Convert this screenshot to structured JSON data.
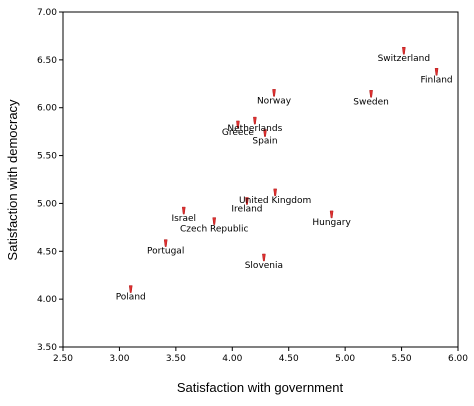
{
  "chart_data": {
    "type": "scatter",
    "title": "",
    "xlabel": "Satisfaction with government",
    "ylabel": "Satisfaction with democracy",
    "xlim": [
      2.5,
      6.0
    ],
    "ylim": [
      3.5,
      7.0
    ],
    "x_ticks": [
      "2.50",
      "3.00",
      "3.50",
      "4.00",
      "4.50",
      "5.00",
      "5.50",
      "6.00"
    ],
    "y_ticks": [
      "3.50",
      "4.00",
      "4.50",
      "5.00",
      "5.50",
      "6.00",
      "6.50",
      "7.00"
    ],
    "grid": false,
    "legend": "none",
    "marker_color": "#e03030",
    "points": [
      {
        "label": "Switzerland",
        "x": 5.52,
        "y": 6.59
      },
      {
        "label": "Finland",
        "x": 5.81,
        "y": 6.37
      },
      {
        "label": "Sweden",
        "x": 5.23,
        "y": 6.14
      },
      {
        "label": "Norway",
        "x": 4.37,
        "y": 6.15
      },
      {
        "label": "Netherlands",
        "x": 4.2,
        "y": 5.86
      },
      {
        "label": "Greece",
        "x": 4.05,
        "y": 5.82
      },
      {
        "label": "Spain",
        "x": 4.29,
        "y": 5.73
      },
      {
        "label": "United Kingdom",
        "x": 4.38,
        "y": 5.11
      },
      {
        "label": "Ireland",
        "x": 4.13,
        "y": 5.02
      },
      {
        "label": "Hungary",
        "x": 4.88,
        "y": 4.88
      },
      {
        "label": "Israel",
        "x": 3.57,
        "y": 4.92
      },
      {
        "label": "Czech Republic",
        "x": 3.84,
        "y": 4.81
      },
      {
        "label": "Portugal",
        "x": 3.41,
        "y": 4.58
      },
      {
        "label": "Slovenia",
        "x": 4.28,
        "y": 4.43
      },
      {
        "label": "Poland",
        "x": 3.1,
        "y": 4.1
      }
    ]
  }
}
